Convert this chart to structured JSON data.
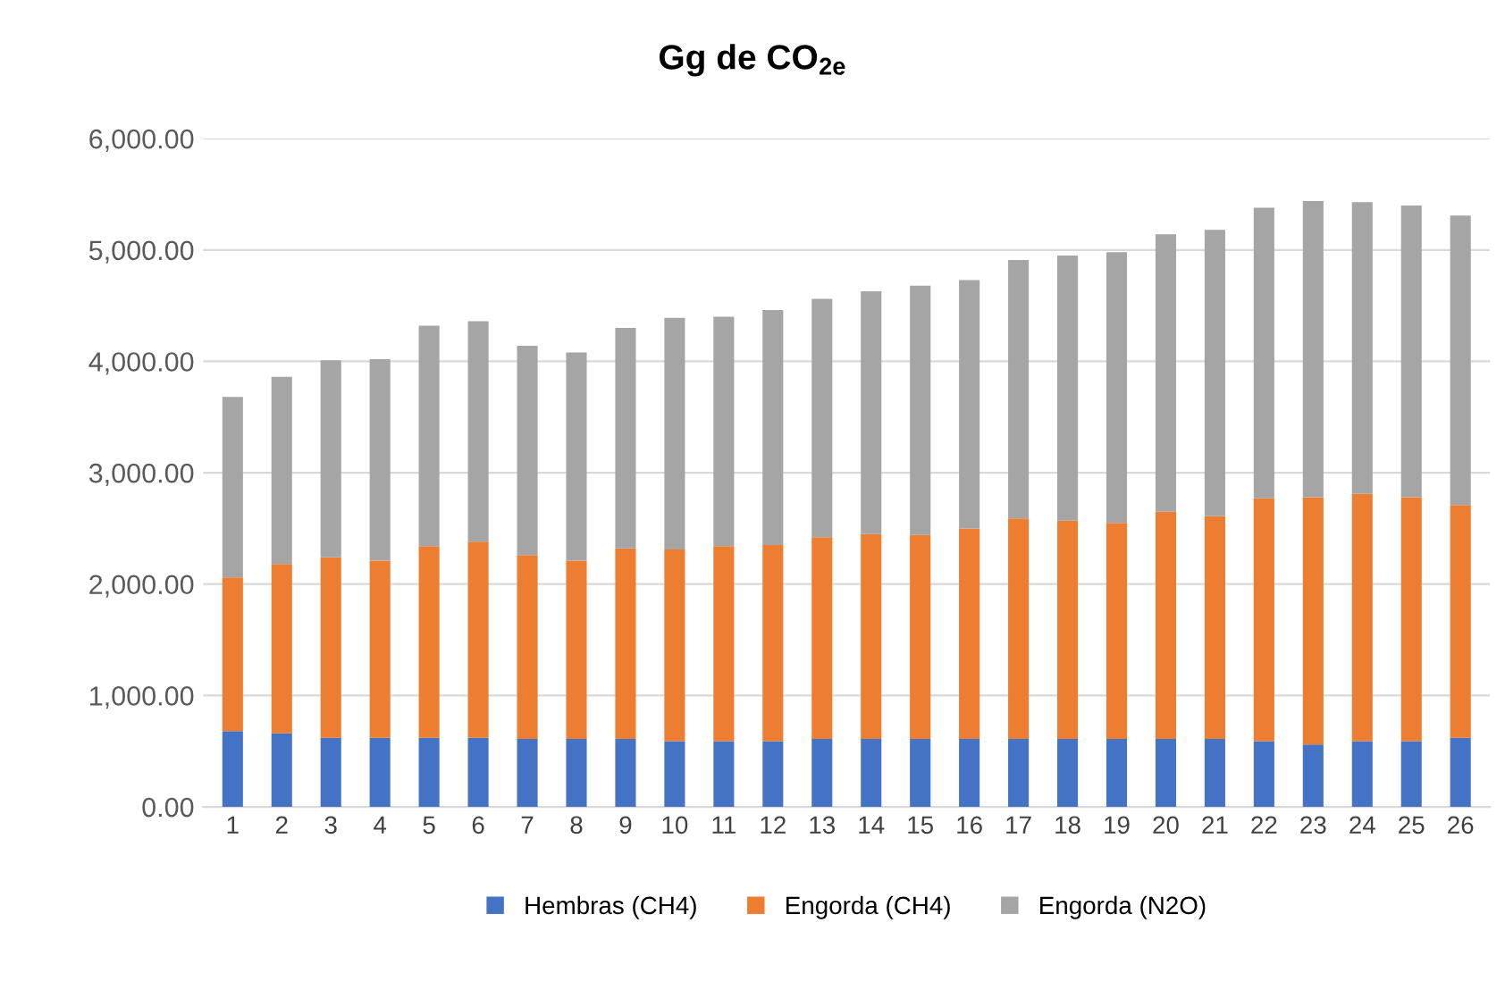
{
  "chart_data": {
    "type": "bar",
    "title": "Gg de CO$_{2e}$",
    "stacked": true,
    "grid": "y",
    "legend": "bottom",
    "categories": [
      "1",
      "2",
      "3",
      "4",
      "5",
      "6",
      "7",
      "8",
      "9",
      "10",
      "11",
      "12",
      "13",
      "14",
      "15",
      "16",
      "17",
      "18",
      "19",
      "20",
      "21",
      "22",
      "23",
      "24",
      "25",
      "26"
    ],
    "series": [
      {
        "name": "Hembras (CH4)",
        "color": "#4472c4",
        "values": [
          680,
          660,
          620,
          620,
          620,
          620,
          610,
          610,
          610,
          590,
          590,
          590,
          610,
          610,
          610,
          610,
          610,
          610,
          610,
          610,
          610,
          590,
          560,
          590,
          590,
          620
        ]
      },
      {
        "name": "Engorda (CH4)",
        "color": "#ed7d31",
        "values": [
          1380,
          1520,
          1620,
          1590,
          1720,
          1760,
          1650,
          1600,
          1710,
          1720,
          1750,
          1760,
          1810,
          1840,
          1830,
          1890,
          1980,
          1960,
          1940,
          2040,
          2000,
          2180,
          2220,
          2220,
          2190,
          2090
        ]
      },
      {
        "name": "Engorda (N2O)",
        "color": "#a5a5a5",
        "values": [
          1620,
          1680,
          1770,
          1810,
          1980,
          1980,
          1880,
          1870,
          1980,
          2080,
          2060,
          2110,
          2140,
          2180,
          2240,
          2230,
          2320,
          2380,
          2430,
          2490,
          2570,
          2610,
          2660,
          2620,
          2620,
          2600
        ]
      }
    ],
    "ylim": [
      0,
      6000
    ],
    "yticks": [
      {
        "value": 0,
        "label": "0.00"
      },
      {
        "value": 1000,
        "label": "1,000.00"
      },
      {
        "value": 2000,
        "label": "2,000.00"
      },
      {
        "value": 3000,
        "label": "3,000.00"
      },
      {
        "value": 4000,
        "label": "4,000.00"
      },
      {
        "value": 5000,
        "label": "5,000.00"
      },
      {
        "value": 6000,
        "label": "6,000.00"
      }
    ]
  }
}
